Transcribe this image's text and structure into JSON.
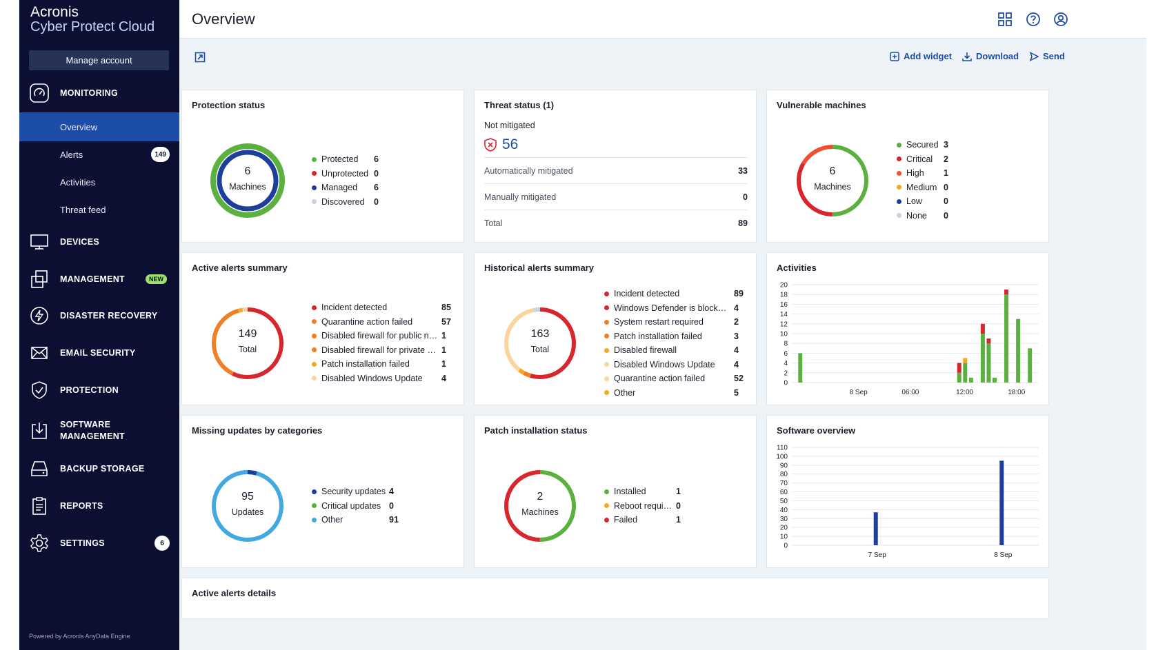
{
  "brand": {
    "line1": "Acronis",
    "line2": "Cyber Protect Cloud"
  },
  "sidebar": {
    "manage_account": "Manage account",
    "monitoring": "MONITORING",
    "sub": [
      {
        "label": "Overview",
        "active": true
      },
      {
        "label": "Alerts",
        "badge": "149"
      },
      {
        "label": "Activities"
      },
      {
        "label": "Threat feed"
      }
    ],
    "sections": [
      {
        "label": "DEVICES",
        "icon": "monitor-icon"
      },
      {
        "label": "MANAGEMENT",
        "icon": "management-icon",
        "badge": "NEW"
      },
      {
        "label": "DISASTER RECOVERY",
        "icon": "lightning-icon"
      },
      {
        "label": "EMAIL SECURITY",
        "icon": "envelope-icon"
      },
      {
        "label": "PROTECTION",
        "icon": "shield-check-icon"
      },
      {
        "label": "SOFTWARE",
        "label2": "MANAGEMENT",
        "icon": "software-download-icon"
      },
      {
        "label": "BACKUP STORAGE",
        "icon": "storage-icon"
      },
      {
        "label": "REPORTS",
        "icon": "clipboard-icon"
      },
      {
        "label": "SETTINGS",
        "icon": "gear-icon",
        "badge": "6"
      }
    ],
    "powered": "Powered by Acronis AnyData Engine"
  },
  "header": {
    "title": "Overview"
  },
  "toolbar": {
    "add_widget": "Add widget",
    "download": "Download",
    "send": "Send"
  },
  "colors": {
    "green": "#5bb040",
    "red": "#d7262e",
    "navy": "#1d3f9a",
    "lightgray": "#c8d2e0",
    "orange": "#f07f26",
    "amber": "#f5a623",
    "peach": "#fbd59b",
    "cyan": "#42a9e0",
    "blue": "#1d4da8"
  },
  "widgets": {
    "protection": {
      "title": "Protection status",
      "value": "6",
      "label": "Machines",
      "legend": [
        {
          "name": "Protected",
          "value": "6",
          "color": "#5bb040"
        },
        {
          "name": "Unprotected",
          "value": "0",
          "color": "#d7262e"
        },
        {
          "name": "Managed",
          "value": "6",
          "color": "#1d3f9a"
        },
        {
          "name": "Discovered",
          "value": "0",
          "color": "#c8d2e0"
        }
      ]
    },
    "threat": {
      "title": "Threat status (1)",
      "not_mitigated_label": "Not mitigated",
      "not_mitigated_value": "56",
      "rows": [
        {
          "label": "Automatically mitigated",
          "value": "33"
        },
        {
          "label": "Manually mitigated",
          "value": "0"
        },
        {
          "label": "Total",
          "value": "89"
        }
      ]
    },
    "vulnerable": {
      "title": "Vulnerable machines",
      "value": "6",
      "label": "Machines",
      "legend": [
        {
          "name": "Secured",
          "value": "3",
          "color": "#5bb040"
        },
        {
          "name": "Critical",
          "value": "2",
          "color": "#d7262e"
        },
        {
          "name": "High",
          "value": "1",
          "color": "#f0502e"
        },
        {
          "name": "Medium",
          "value": "0",
          "color": "#f5a623"
        },
        {
          "name": "Low",
          "value": "0",
          "color": "#1d3f9a"
        },
        {
          "name": "None",
          "value": "0",
          "color": "#c8d2e0"
        }
      ]
    },
    "active_alerts": {
      "title": "Active alerts summary",
      "value": "149",
      "label": "Total",
      "legend": [
        {
          "name": "Incident detected",
          "value": "85",
          "color": "#d7262e"
        },
        {
          "name": "Quarantine action failed",
          "value": "57",
          "color": "#f07f26"
        },
        {
          "name": "Disabled firewall for public ne...",
          "value": "1",
          "color": "#f07f26"
        },
        {
          "name": "Disabled firewall for private n...",
          "value": "1",
          "color": "#f07f26"
        },
        {
          "name": "Patch installation failed",
          "value": "1",
          "color": "#f5a623"
        },
        {
          "name": "Disabled Windows Update",
          "value": "4",
          "color": "#fbd59b"
        }
      ]
    },
    "historical_alerts": {
      "title": "Historical alerts summary",
      "value": "163",
      "label": "Total",
      "legend": [
        {
          "name": "Incident detected",
          "value": "89",
          "color": "#d7262e"
        },
        {
          "name": "Windows Defender is blocked...",
          "value": "4",
          "color": "#d7262e"
        },
        {
          "name": "System restart required",
          "value": "2",
          "color": "#f07f26"
        },
        {
          "name": "Patch installation failed",
          "value": "3",
          "color": "#f07f26"
        },
        {
          "name": "Disabled firewall",
          "value": "4",
          "color": "#f5a623"
        },
        {
          "name": "Disabled Windows Update",
          "value": "4",
          "color": "#fbd59b"
        },
        {
          "name": "Quarantine action failed",
          "value": "52",
          "color": "#fbd59b"
        },
        {
          "name": "Other",
          "value": "5",
          "color": "#f5a623"
        }
      ]
    },
    "missing_updates": {
      "title": "Missing updates by categories",
      "value": "95",
      "label": "Updates",
      "legend": [
        {
          "name": "Security updates",
          "value": "4",
          "color": "#1d3f9a"
        },
        {
          "name": "Critical updates",
          "value": "0",
          "color": "#5bb040"
        },
        {
          "name": "Other",
          "value": "91",
          "color": "#42a9e0"
        }
      ]
    },
    "patch": {
      "title": "Patch installation status",
      "value": "2",
      "label": "Machines",
      "legend": [
        {
          "name": "Installed",
          "value": "1",
          "color": "#5bb040"
        },
        {
          "name": "Reboot required",
          "value": "0",
          "color": "#f5a623"
        },
        {
          "name": "Failed",
          "value": "1",
          "color": "#d7262e"
        }
      ]
    },
    "activities": {
      "title": "Activities"
    },
    "software": {
      "title": "Software overview"
    },
    "active_details": {
      "title": "Active alerts details"
    }
  },
  "chart_data": [
    {
      "type": "bar",
      "title": "Activities",
      "stacked": true,
      "ylim": [
        0,
        20
      ],
      "yticks": [
        0,
        2,
        4,
        6,
        8,
        10,
        12,
        14,
        16,
        18,
        20
      ],
      "xtick_labels": [
        "8 Sep",
        "06:00",
        "12:00",
        "18:00"
      ],
      "series": [
        {
          "color": "#5bb040",
          "values": [
            6,
            0,
            0,
            0,
            0,
            0,
            0,
            0,
            0,
            0,
            0,
            0,
            0,
            0,
            0,
            0,
            0,
            0,
            0,
            0,
            0,
            0,
            0,
            0,
            0,
            0,
            0,
            2,
            4,
            1,
            0,
            10,
            8,
            1,
            0,
            18,
            0,
            13,
            0,
            7,
            0
          ]
        },
        {
          "color": "#d7262e",
          "values": [
            0,
            0,
            0,
            0,
            0,
            0,
            0,
            0,
            0,
            0,
            0,
            0,
            0,
            0,
            0,
            0,
            0,
            0,
            0,
            0,
            0,
            0,
            0,
            0,
            0,
            0,
            0,
            2,
            0,
            0,
            0,
            2,
            1,
            0,
            0,
            1,
            0,
            0,
            0,
            0,
            0
          ]
        },
        {
          "color": "#f5a623",
          "values": [
            0,
            0,
            0,
            0,
            0,
            0,
            0,
            0,
            0,
            0,
            0,
            0,
            0,
            0,
            0,
            0,
            0,
            0,
            0,
            0,
            0,
            0,
            0,
            0,
            0,
            0,
            0,
            0,
            1,
            0,
            0,
            0,
            0,
            0,
            0,
            0,
            0,
            0,
            0,
            0,
            0
          ]
        }
      ]
    },
    {
      "type": "bar",
      "title": "Software overview",
      "ylim": [
        0,
        110
      ],
      "yticks": [
        0,
        10,
        20,
        30,
        40,
        50,
        60,
        70,
        80,
        90,
        100,
        110
      ],
      "categories": [
        "7 Sep",
        "8 Sep"
      ],
      "values": [
        37,
        95
      ],
      "color": "#1d3f9a"
    }
  ]
}
